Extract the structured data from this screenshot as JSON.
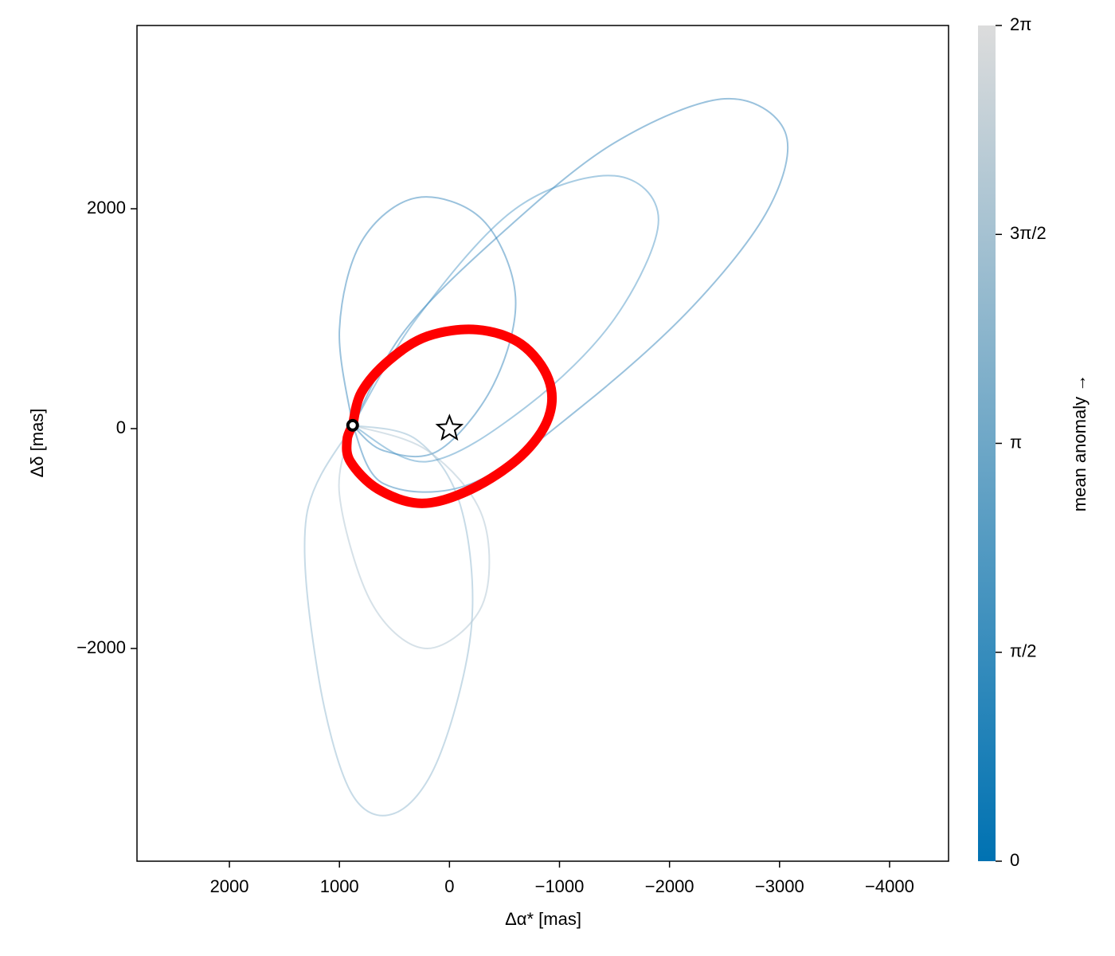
{
  "chart_data": {
    "type": "line",
    "xlabel": "Δα* [mas]",
    "ylabel": "Δδ [mas]",
    "xlim": [
      2840,
      -4536
    ],
    "ylim": [
      -3935,
      3667
    ],
    "xticks": [
      2000,
      1000,
      0,
      {
        "value": -1000,
        "label": "−1000"
      },
      {
        "value": -2000,
        "label": "−2000"
      },
      {
        "value": -3000,
        "label": "−3000"
      },
      {
        "value": -4000,
        "label": "−4000"
      }
    ],
    "yticks": [
      {
        "value": -2000,
        "label": "−2000"
      },
      0,
      2000
    ],
    "series": [
      {
        "color": "#1f78b4",
        "opacity": 0.45,
        "x": [
          880,
          400,
          -500,
          -1500,
          -2500,
          -3050,
          -2900,
          -2200,
          -1200,
          -200,
          600,
          880
        ],
        "y": [
          30,
          900,
          1800,
          2600,
          3000,
          2700,
          2000,
          1100,
          200,
          -500,
          -500,
          30
        ]
      },
      {
        "color": "#8fb7d0",
        "opacity": 0.5,
        "x": [
          880,
          1300,
          1200,
          900,
          500,
          100,
          -200,
          -100,
          300,
          880
        ],
        "y": [
          30,
          -800,
          -2200,
          -3300,
          -3500,
          -3000,
          -1800,
          -700,
          -100,
          30
        ]
      },
      {
        "color": "#1f78b4",
        "opacity": 0.45,
        "x": [
          880,
          1000,
          800,
          300,
          -300,
          -600,
          -400,
          100,
          600,
          880
        ],
        "y": [
          30,
          900,
          1700,
          2100,
          1900,
          1200,
          400,
          -200,
          -200,
          30
        ]
      },
      {
        "color": "#b5c9d6",
        "opacity": 0.55,
        "x": [
          880,
          1000,
          700,
          200,
          -300,
          -300,
          200,
          880
        ],
        "y": [
          30,
          -600,
          -1600,
          -2000,
          -1600,
          -800,
          -200,
          30
        ]
      },
      {
        "color": "#3f8fc0",
        "opacity": 0.45,
        "x": [
          880,
          300,
          -600,
          -1500,
          -1900,
          -1500,
          -700,
          200,
          880
        ],
        "y": [
          30,
          1000,
          2000,
          2300,
          1900,
          1000,
          200,
          -300,
          30
        ]
      },
      {
        "color": "#ff0000",
        "opacity": 1,
        "emphasis": true,
        "x": [
          880,
          800,
          550,
          200,
          -250,
          -650,
          -900,
          -900,
          -650,
          -200,
          250,
          650,
          900,
          930,
          880
        ],
        "y": [
          30,
          330,
          620,
          840,
          900,
          770,
          450,
          100,
          -250,
          -550,
          -680,
          -550,
          -300,
          -100,
          30
        ]
      }
    ],
    "markers": [
      {
        "symbol": "star",
        "x": 0,
        "y": 0
      },
      {
        "symbol": "circle",
        "x": 880,
        "y": 30
      }
    ],
    "colorbar": {
      "label": "mean anomaly →",
      "lim": [
        0,
        6.2832
      ],
      "ticks": [
        0,
        {
          "value": 1.5708,
          "label": "π/2"
        },
        {
          "value": 3.1416,
          "label": "π"
        },
        {
          "value": 4.7124,
          "label": "3π/2"
        },
        {
          "value": 6.2832,
          "label": "2π"
        }
      ],
      "colors": [
        "#0072b2",
        "#dcdcdc"
      ]
    }
  }
}
